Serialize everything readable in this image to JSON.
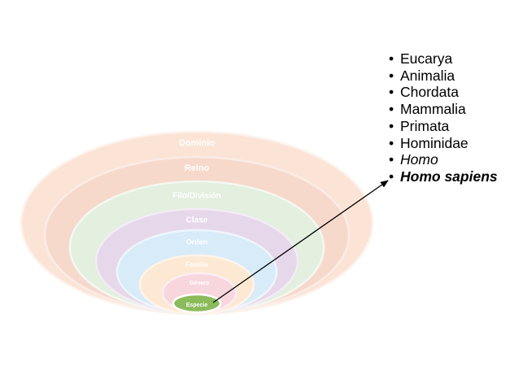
{
  "ranks": [
    {
      "label": "Dominio",
      "color": "#fbe4d6"
    },
    {
      "label": "Reino",
      "color": "#f7d9cc"
    },
    {
      "label": "Filo/División",
      "color": "#e3efdf"
    },
    {
      "label": "Clase",
      "color": "#e6d8ea"
    },
    {
      "label": "Orden",
      "color": "#d7ebf8"
    },
    {
      "label": "Familia",
      "color": "#fde8d3"
    },
    {
      "label": "Género",
      "color": "#f7d6de"
    },
    {
      "label": "Especie",
      "color": "#8cbb5c"
    }
  ],
  "taxa": [
    {
      "text": "Eucarya",
      "style": "normal"
    },
    {
      "text": "Animalia",
      "style": "normal"
    },
    {
      "text": "Chordata",
      "style": "normal"
    },
    {
      "text": "Mammalia",
      "style": "normal"
    },
    {
      "text": "Primata",
      "style": "normal"
    },
    {
      "text": "Hominidae",
      "style": "normal"
    },
    {
      "text": "Homo",
      "style": "italic"
    },
    {
      "text": "Homo sapiens",
      "style": "bold-italic"
    }
  ],
  "bullet": "•"
}
